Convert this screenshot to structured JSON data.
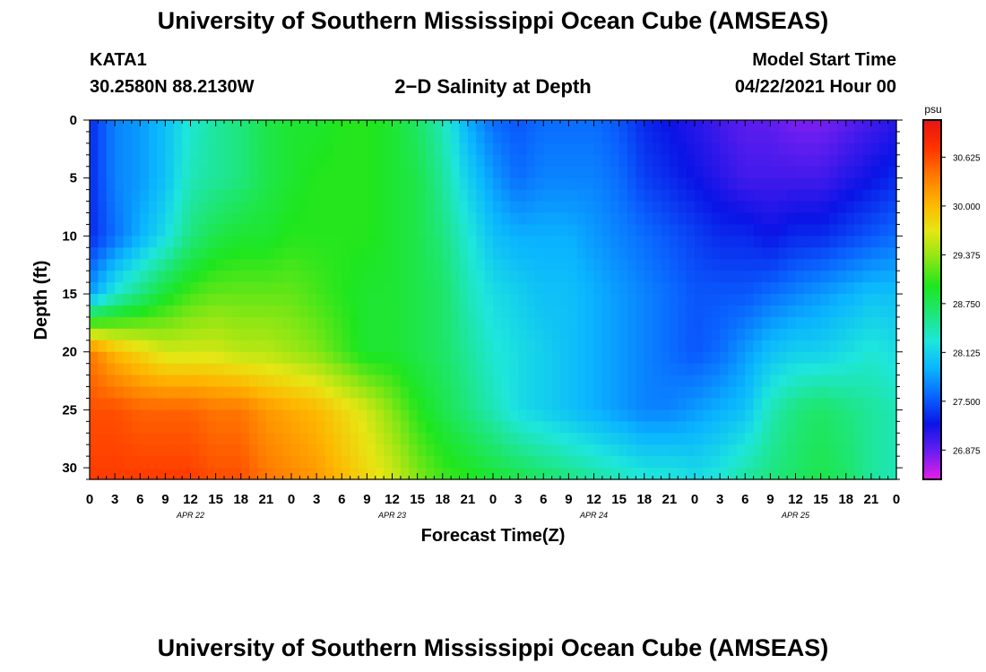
{
  "header": {
    "title": "University of Southern Mississippi Ocean Cube (AMSEAS)",
    "footer_title": "University of Southern Mississippi Ocean Cube (AMSEAS)",
    "station": "KATA1",
    "location": "30.2580N  88.2130W",
    "plot_title": "2−D Salinity at Depth",
    "model_start_label": "Model Start Time",
    "model_start_value": "04/22/2021 Hour 00"
  },
  "chart_data": {
    "type": "heatmap",
    "title": "2−D Salinity at Depth",
    "xlabel": "Forecast Time(Z)",
    "ylabel": "Depth (ft)",
    "x_range_hours": [
      0,
      96
    ],
    "x_tick_step_hours": 3,
    "x_tick_labels": [
      "0",
      "3",
      "6",
      "9",
      "12",
      "15",
      "18",
      "21",
      "0",
      "3",
      "6",
      "9",
      "12",
      "15",
      "18",
      "21",
      "0",
      "3",
      "6",
      "9",
      "12",
      "15",
      "18",
      "21",
      "0",
      "3",
      "6",
      "9",
      "12",
      "15",
      "18",
      "21",
      "0"
    ],
    "date_labels": [
      {
        "label": "APR 22",
        "hour": 12
      },
      {
        "label": "APR 23",
        "hour": 36
      },
      {
        "label": "APR 24",
        "hour": 60
      },
      {
        "label": "APR 25",
        "hour": 84
      }
    ],
    "y_range": [
      0,
      31
    ],
    "y_ticks": [
      0,
      5,
      10,
      15,
      20,
      25,
      30
    ],
    "y_inverted": true,
    "colorbar": {
      "unit": "psu",
      "min": 26.5,
      "max": 31.1,
      "tick_labels": [
        "30.625",
        "30.000",
        "29.375",
        "28.750",
        "28.125",
        "27.500",
        "26.875"
      ],
      "colors": [
        "#e61ee6",
        "#6a1ef0",
        "#0a14e6",
        "#0a64ff",
        "#0ab4ff",
        "#1ee6dc",
        "#1ee678",
        "#1ee61e",
        "#8ce614",
        "#e6e614",
        "#ffb400",
        "#ff7800",
        "#ff3200",
        "#e61414"
      ]
    },
    "field_samples": {
      "hours": [
        0,
        3,
        6,
        9,
        12,
        15,
        18,
        21,
        24,
        27,
        30,
        33,
        36,
        39,
        42,
        45,
        48,
        51,
        54,
        57,
        60,
        63,
        66,
        69,
        72,
        75,
        78,
        81,
        84,
        87,
        90,
        93,
        96
      ],
      "depths_ft": [
        0,
        5,
        10,
        15,
        20,
        25,
        31
      ],
      "salinity_psu": [
        [
          27.3,
          27.7,
          27.8,
          28.0,
          28.3,
          28.5,
          28.6,
          28.8,
          28.9,
          28.9,
          29.0,
          29.0,
          28.9,
          28.7,
          28.4,
          27.9,
          27.6,
          27.5,
          27.6,
          27.6,
          27.6,
          27.5,
          27.3,
          27.2,
          27.1,
          27.0,
          26.9,
          26.9,
          26.8,
          26.8,
          26.9,
          27.0,
          27.1
        ],
        [
          27.3,
          27.7,
          27.8,
          28.0,
          28.4,
          28.5,
          28.6,
          28.8,
          28.9,
          29.0,
          29.0,
          29.0,
          28.9,
          28.8,
          28.5,
          28.1,
          27.8,
          27.6,
          27.7,
          27.7,
          27.7,
          27.6,
          27.4,
          27.3,
          27.2,
          27.1,
          27.0,
          27.0,
          27.0,
          27.0,
          27.1,
          27.2,
          27.3
        ],
        [
          27.3,
          27.6,
          27.9,
          28.2,
          28.6,
          28.8,
          28.9,
          28.9,
          29.0,
          29.0,
          29.0,
          29.0,
          28.9,
          28.8,
          28.6,
          28.3,
          28.0,
          27.9,
          27.9,
          27.9,
          27.8,
          27.7,
          27.6,
          27.5,
          27.4,
          27.3,
          27.3,
          27.2,
          27.3,
          27.3,
          27.4,
          27.5,
          27.6
        ],
        [
          27.8,
          28.3,
          28.6,
          28.9,
          29.1,
          29.2,
          29.2,
          29.2,
          29.2,
          29.1,
          29.0,
          28.9,
          28.9,
          28.8,
          28.7,
          28.4,
          28.2,
          28.1,
          28.0,
          28.0,
          27.9,
          27.8,
          27.7,
          27.6,
          27.5,
          27.5,
          27.5,
          27.6,
          27.7,
          27.8,
          27.9,
          28.0,
          28.0
        ],
        [
          30.4,
          30.0,
          29.8,
          29.6,
          29.6,
          29.6,
          29.5,
          29.5,
          29.4,
          29.3,
          29.1,
          28.9,
          28.9,
          28.8,
          28.7,
          28.5,
          28.3,
          28.2,
          28.1,
          28.0,
          27.9,
          27.8,
          27.7,
          27.6,
          27.5,
          27.6,
          27.8,
          28.0,
          28.1,
          28.1,
          28.2,
          28.3,
          28.2
        ],
        [
          30.6,
          30.6,
          30.5,
          30.5,
          30.5,
          30.4,
          30.4,
          30.2,
          30.1,
          30.0,
          29.8,
          29.6,
          29.3,
          29.0,
          28.8,
          28.6,
          28.4,
          28.2,
          28.1,
          28.0,
          27.9,
          27.8,
          27.7,
          27.7,
          27.8,
          27.9,
          28.0,
          28.4,
          28.6,
          28.7,
          28.6,
          28.5,
          28.4
        ],
        [
          30.7,
          30.7,
          30.7,
          30.7,
          30.7,
          30.6,
          30.6,
          30.4,
          30.3,
          30.2,
          30.0,
          29.8,
          29.6,
          29.3,
          29.1,
          29.0,
          28.9,
          28.8,
          28.7,
          28.6,
          28.5,
          28.4,
          28.3,
          28.3,
          28.2,
          28.3,
          28.5,
          28.6,
          28.7,
          28.8,
          28.7,
          28.5,
          28.4
        ]
      ]
    }
  }
}
